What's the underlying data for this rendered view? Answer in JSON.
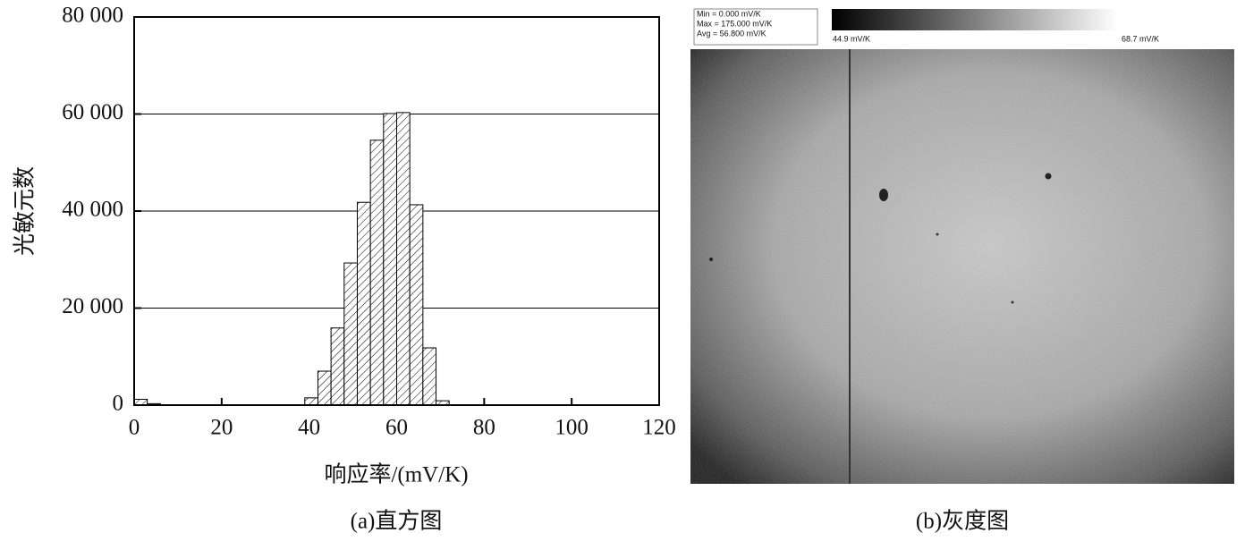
{
  "chart_data": {
    "type": "histogram",
    "x_label": "响应率/(mV/K)",
    "y_label": "光敏元数",
    "caption": "(a)直方图",
    "bins": [
      0,
      3,
      6,
      9,
      12,
      15,
      18,
      21,
      24,
      27,
      30,
      33,
      36,
      39,
      42,
      45,
      48,
      51,
      54,
      57,
      60,
      63,
      66,
      69,
      72
    ],
    "values": [
      1200,
      300,
      0,
      0,
      0,
      0,
      0,
      0,
      0,
      0,
      0,
      0,
      0,
      1500,
      7000,
      15900,
      29300,
      41800,
      54600,
      60100,
      60300,
      41300,
      11800,
      900
    ],
    "color": "#000000",
    "xlim": [
      0,
      120
    ],
    "xticks": [
      0,
      20,
      40,
      60,
      80,
      100,
      120
    ],
    "ylim": [
      0,
      80000
    ],
    "yticks": [
      0,
      {
        "value": 20000,
        "label": "20 000"
      },
      {
        "value": 40000,
        "label": "40 000"
      },
      {
        "value": 60000,
        "label": "60 000"
      },
      {
        "value": 80000,
        "label": "80 000"
      }
    ],
    "grid": true
  },
  "image_panel": {
    "caption": "(b)灰度图",
    "stats": [
      "Min = 0.000 mV/K",
      "Max = 175.000 mV/K",
      "Avg = 56.800 mV/K"
    ],
    "colorbar_min": "44.9 mV/K",
    "colorbar_max": "68.7 mV/K"
  }
}
